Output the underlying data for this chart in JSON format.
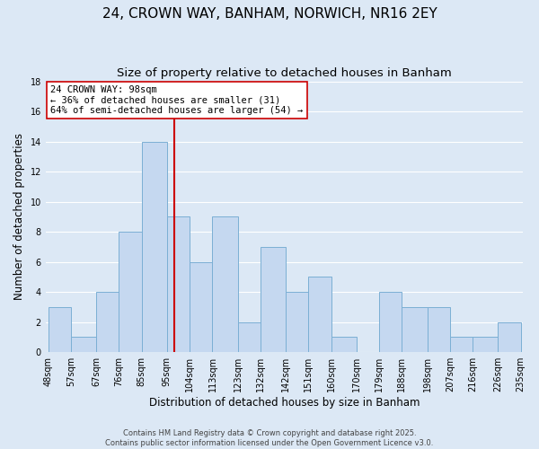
{
  "title": "24, CROWN WAY, BANHAM, NORWICH, NR16 2EY",
  "subtitle": "Size of property relative to detached houses in Banham",
  "xlabel": "Distribution of detached houses by size in Banham",
  "ylabel": "Number of detached properties",
  "footer_line1": "Contains HM Land Registry data © Crown copyright and database right 2025.",
  "footer_line2": "Contains public sector information licensed under the Open Government Licence v3.0.",
  "bins": [
    48,
    57,
    67,
    76,
    85,
    95,
    104,
    113,
    123,
    132,
    142,
    151,
    160,
    170,
    179,
    188,
    198,
    207,
    216,
    226,
    235
  ],
  "counts": [
    3,
    1,
    4,
    8,
    14,
    9,
    6,
    9,
    2,
    7,
    4,
    5,
    1,
    0,
    4,
    3,
    3,
    1,
    1,
    2
  ],
  "bar_color": "#c5d8f0",
  "bar_edge_color": "#7bafd4",
  "vline_x": 98,
  "vline_color": "#cc0000",
  "annotation_line1": "24 CROWN WAY: 98sqm",
  "annotation_line2": "← 36% of detached houses are smaller (31)",
  "annotation_line3": "64% of semi-detached houses are larger (54) →",
  "annotation_box_color": "#ffffff",
  "annotation_box_edge_color": "#cc0000",
  "ylim": [
    0,
    18
  ],
  "yticks": [
    0,
    2,
    4,
    6,
    8,
    10,
    12,
    14,
    16,
    18
  ],
  "background_color": "#dce8f5",
  "grid_color": "#ffffff",
  "title_fontsize": 11,
  "subtitle_fontsize": 9.5,
  "xlabel_fontsize": 8.5,
  "ylabel_fontsize": 8.5,
  "tick_fontsize": 7,
  "footer_fontsize": 6,
  "annotation_fontsize": 7.5
}
